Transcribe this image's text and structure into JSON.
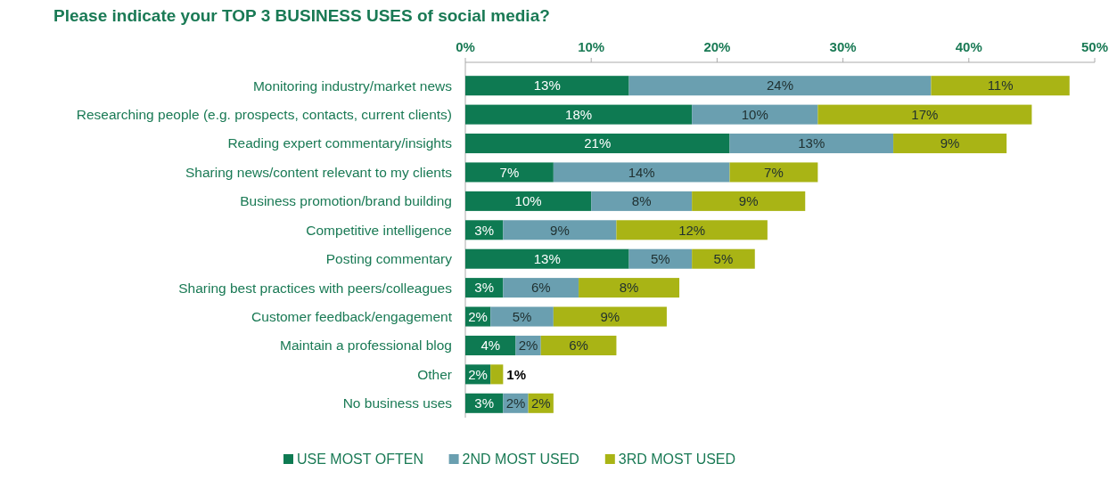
{
  "chart_data": {
    "type": "bar",
    "title": "Please indicate your TOP 3 BUSINESS USES of social media?",
    "orientation": "horizontal",
    "stacked": true,
    "categories": [
      "Monitoring industry/market news",
      "Researching people (e.g. prospects, contacts, current clients)",
      "Reading expert commentary/insights",
      "Sharing news/content relevant to my clients",
      "Business promotion/brand building",
      "Competitive intelligence",
      "Posting commentary",
      "Sharing best practices with peers/colleagues",
      "Customer feedback/engagement",
      "Maintain a professional blog",
      "Other",
      "No business uses"
    ],
    "series": [
      {
        "name": "USE MOST OFTEN",
        "color": "#0e7a52",
        "values": [
          13,
          18,
          21,
          7,
          10,
          3,
          13,
          3,
          2,
          4,
          2,
          3
        ],
        "value_labels": [
          "13%",
          "18%",
          "21%",
          "7%",
          "10%",
          "3%",
          "13%",
          "3%",
          "2%",
          "4%",
          "2%",
          "3%"
        ]
      },
      {
        "name": "2ND MOST USED",
        "color": "#6a9fb0",
        "values": [
          24,
          10,
          13,
          14,
          8,
          9,
          5,
          6,
          5,
          2,
          0,
          2
        ],
        "value_labels": [
          "24%",
          "10%",
          "13%",
          "14%",
          "8%",
          "9%",
          "5%",
          "6%",
          "5%",
          "2%",
          null,
          "2%"
        ]
      },
      {
        "name": "3RD MOST USED",
        "color": "#a9b415",
        "values": [
          11,
          17,
          9,
          7,
          9,
          12,
          5,
          8,
          9,
          6,
          1,
          2
        ],
        "value_labels": [
          "11%",
          "17%",
          "9%",
          "7%",
          "9%",
          "12%",
          "5%",
          "8%",
          "9%",
          "6%",
          "1%",
          "2%"
        ]
      }
    ],
    "xlim": [
      0,
      50
    ],
    "xticks": [
      {
        "value": 0,
        "label": "0%"
      },
      {
        "value": 10,
        "label": "10%"
      },
      {
        "value": 20,
        "label": "20%"
      },
      {
        "value": 30,
        "label": "30%"
      },
      {
        "value": 40,
        "label": "40%"
      },
      {
        "value": 50,
        "label": "50%"
      }
    ],
    "legend": "bottom",
    "grid": false
  }
}
